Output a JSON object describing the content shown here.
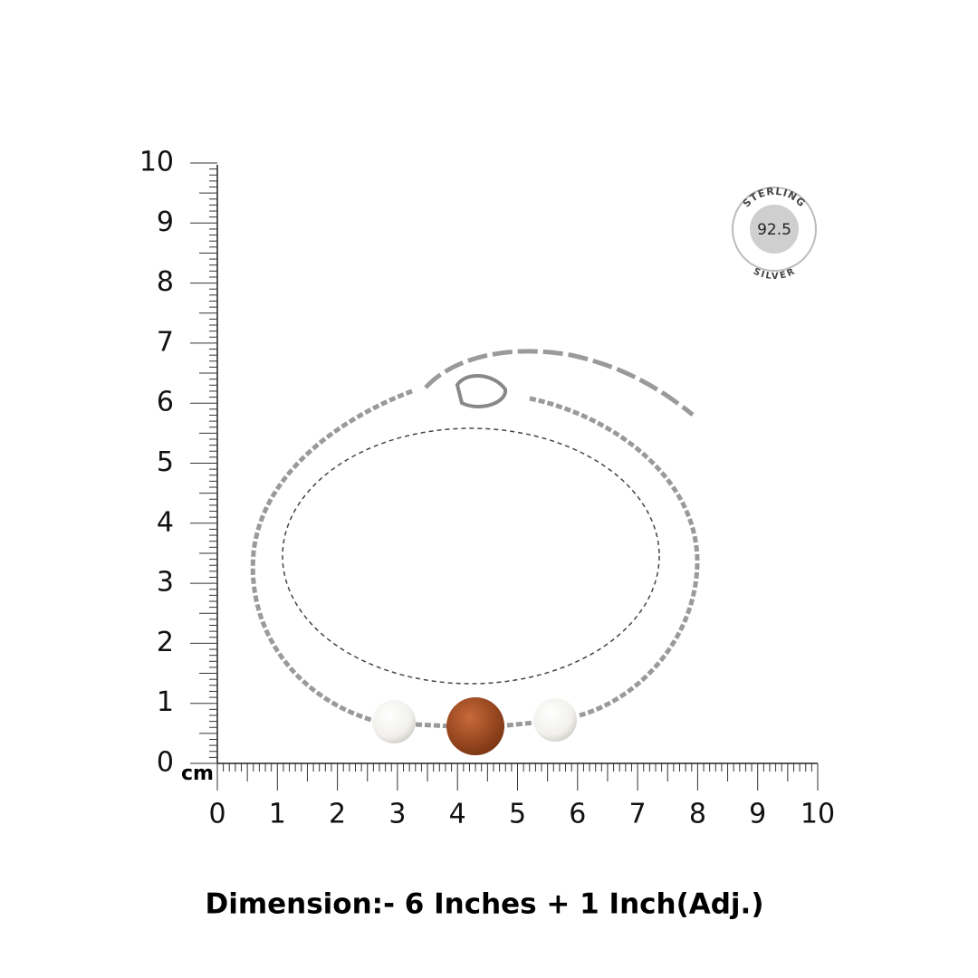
{
  "ruler": {
    "y_labels": [
      10,
      9,
      8,
      7,
      6,
      5,
      4,
      3,
      2,
      1,
      0
    ],
    "x_labels": [
      0,
      1,
      2,
      3,
      4,
      5,
      6,
      7,
      8,
      9,
      10
    ],
    "unit": "cm"
  },
  "badge": {
    "top": "STERLING",
    "center": "92.5",
    "bottom": "SILVER"
  },
  "caption": "Dimension:- 6 Inches + 1 Inch(Adj.)"
}
